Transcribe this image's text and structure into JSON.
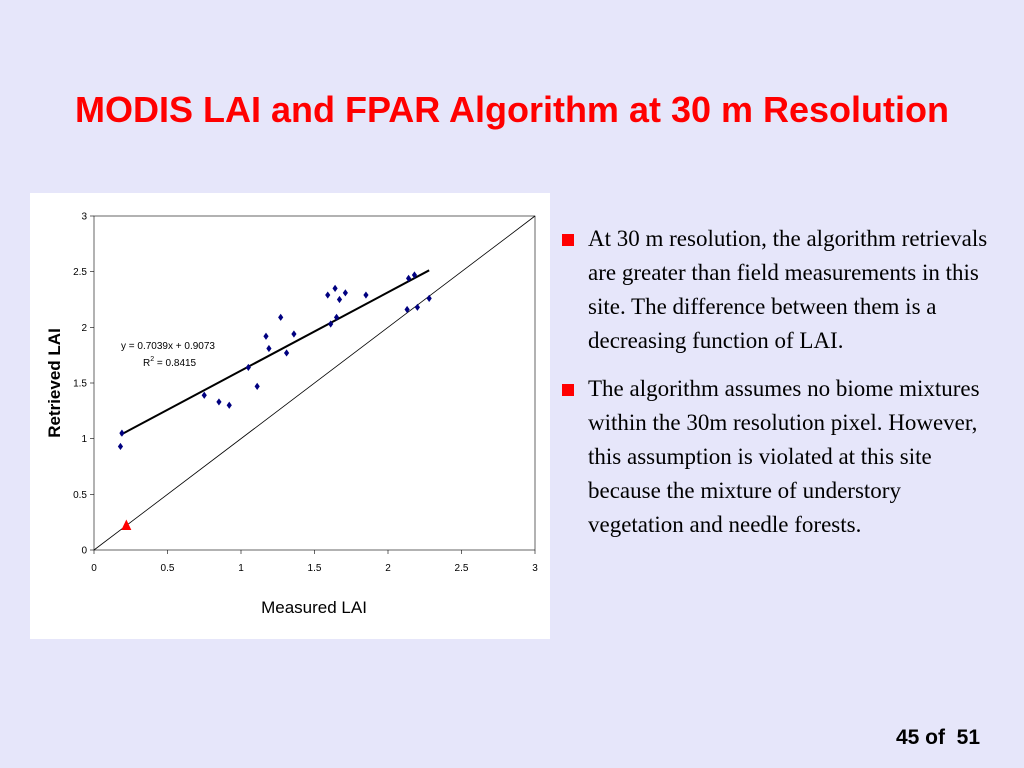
{
  "slide": {
    "title": "MODIS LAI and FPAR Algorithm at 30 m Resolution",
    "bullets": [
      "At 30 m resolution, the algorithm retrievals are greater than field measurements in this site. The difference between them is a decreasing function of LAI.",
      "The algorithm assumes no biome mixtures within the 30m resolution pixel. However, this assumption is violated at this site because the mixture of understory vegetation and needle forests."
    ],
    "page_number": "45 of  51",
    "bullet_color": "#FF0000",
    "title_color": "#FF0000",
    "background_color": "#E6E6FA"
  },
  "chart_data": {
    "type": "scatter",
    "xlabel": "Measured LAI",
    "ylabel": "Retrieved LAI",
    "xlim": [
      0,
      3
    ],
    "ylim": [
      0,
      3
    ],
    "xticks": [
      "0",
      "0.5",
      "1",
      "1.5",
      "2",
      "2.5",
      "3"
    ],
    "yticks": [
      "0",
      "0.5",
      "1",
      "1.5",
      "2",
      "2.5",
      "3"
    ],
    "grid": false,
    "series": [
      {
        "marker": "diamond",
        "color": "#000080",
        "points": [
          [
            0.18,
            0.93
          ],
          [
            0.19,
            1.05
          ],
          [
            0.75,
            1.39
          ],
          [
            0.85,
            1.33
          ],
          [
            0.92,
            1.3
          ],
          [
            1.05,
            1.64
          ],
          [
            1.11,
            1.47
          ],
          [
            1.17,
            1.92
          ],
          [
            1.19,
            1.81
          ],
          [
            1.27,
            2.09
          ],
          [
            1.31,
            1.77
          ],
          [
            1.36,
            1.94
          ],
          [
            1.59,
            2.29
          ],
          [
            1.61,
            2.03
          ],
          [
            1.64,
            2.35
          ],
          [
            1.65,
            2.09
          ],
          [
            1.67,
            2.25
          ],
          [
            1.71,
            2.31
          ],
          [
            1.85,
            2.29
          ],
          [
            2.13,
            2.16
          ],
          [
            2.14,
            2.44
          ],
          [
            2.18,
            2.47
          ],
          [
            2.2,
            2.18
          ],
          [
            2.28,
            2.26
          ]
        ]
      },
      {
        "marker": "triangle",
        "color": "#FF0000",
        "points": [
          [
            0.22,
            0.22
          ]
        ]
      }
    ],
    "trendline": {
      "equation": "y = 0.7039x + 0.9073",
      "r2_label": "R",
      "r2_superscript": "2",
      "r2_value": " = 0.8415",
      "slope": 0.7039,
      "intercept": 0.9073,
      "x_range": [
        0.18,
        2.28
      ]
    },
    "reference_line": {
      "type": "1:1",
      "x_range": [
        0,
        3
      ]
    }
  }
}
